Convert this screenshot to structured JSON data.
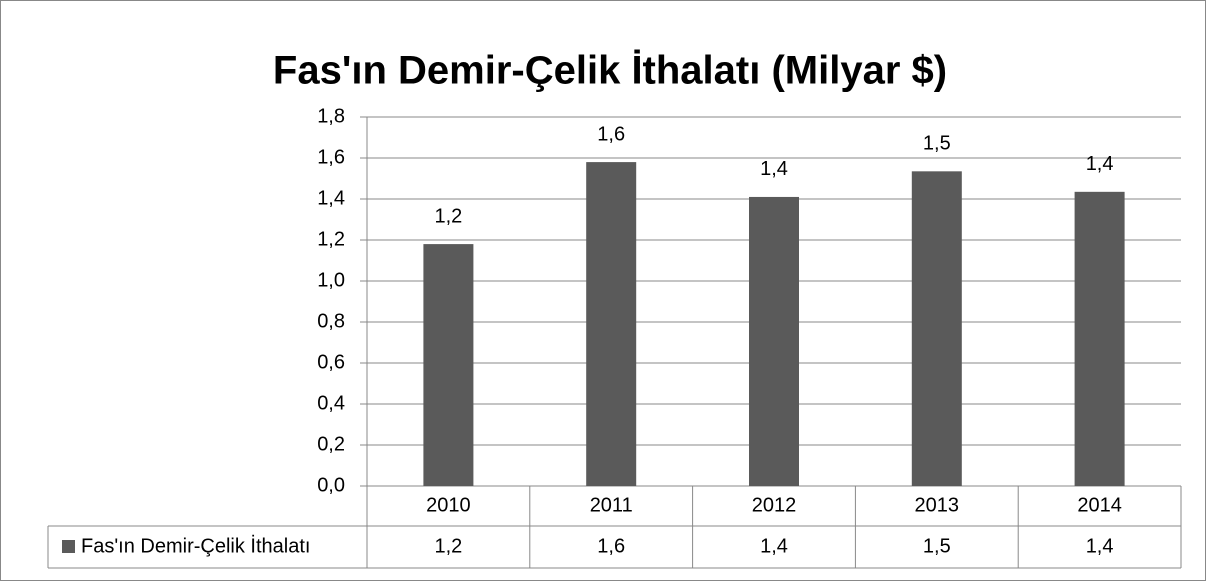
{
  "chart_data": {
    "type": "bar",
    "title": "Fas'ın Demir-Çelik İthalatı (Milyar $)",
    "categories": [
      "2010",
      "2011",
      "2012",
      "2013",
      "2014"
    ],
    "series": [
      {
        "name": "Fas'ın Demir-Çelik İthalatı",
        "color": "#5a5a5a",
        "values": [
          1.18,
          1.58,
          1.41,
          1.535,
          1.435
        ],
        "value_labels": [
          "1,2",
          "1,6",
          "1,4",
          "1,5",
          "1,4"
        ]
      }
    ],
    "ylim": [
      0,
      1.8
    ],
    "yticks": [
      {
        "value": 0,
        "label": "0,0"
      },
      {
        "value": 0.2,
        "label": "0,2"
      },
      {
        "value": 0.4,
        "label": "0,4"
      },
      {
        "value": 0.6,
        "label": "0,6"
      },
      {
        "value": 0.8,
        "label": "0,8"
      },
      {
        "value": 1.0,
        "label": "1,0"
      },
      {
        "value": 1.2,
        "label": "1,2"
      },
      {
        "value": 1.4,
        "label": "1,4"
      },
      {
        "value": 1.6,
        "label": "1,6"
      },
      {
        "value": 1.8,
        "label": "1,8"
      }
    ],
    "grid": true,
    "data_table": true
  }
}
